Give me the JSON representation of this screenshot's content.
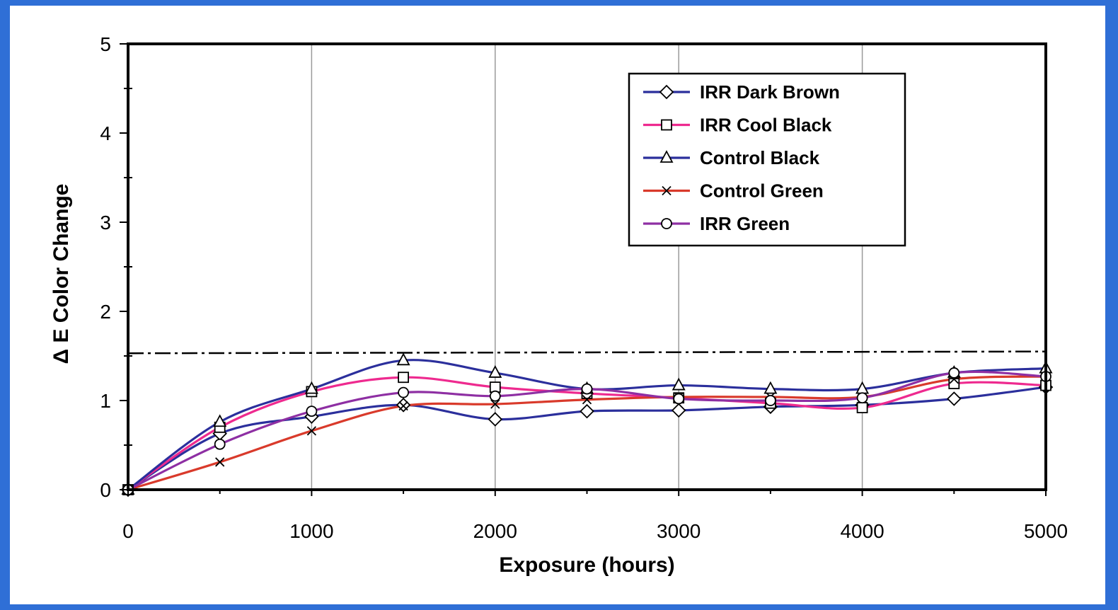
{
  "chart_data": {
    "type": "line",
    "title": "",
    "xlabel": "Exposure (hours)",
    "ylabel": "Δ E Color Change",
    "xlim": [
      0,
      5000
    ],
    "ylim": [
      0,
      5
    ],
    "x_ticks": [
      0,
      1000,
      2000,
      3000,
      4000,
      5000
    ],
    "y_ticks": [
      0,
      1,
      2,
      3,
      4,
      5
    ],
    "grid": "vertical",
    "legend": "top-right",
    "x": [
      0,
      500,
      1000,
      1500,
      2000,
      2500,
      3000,
      3500,
      4000,
      4500,
      5000
    ],
    "series": [
      {
        "name": "IRR Dark Brown",
        "marker": "diamond",
        "color": "#2b2f9c",
        "values": [
          0,
          0.63,
          0.82,
          0.95,
          0.79,
          0.88,
          0.89,
          0.93,
          0.95,
          1.02,
          1.15
        ]
      },
      {
        "name": "IRR Cool Black",
        "marker": "square",
        "color": "#ee2a8f",
        "values": [
          0,
          0.7,
          1.1,
          1.26,
          1.15,
          1.08,
          1.03,
          0.97,
          0.92,
          1.19,
          1.17
        ]
      },
      {
        "name": "Control Black",
        "marker": "triangle",
        "color": "#2b2f9c",
        "values": [
          0,
          0.76,
          1.13,
          1.45,
          1.31,
          1.13,
          1.17,
          1.13,
          1.13,
          1.31,
          1.36
        ]
      },
      {
        "name": "Control Green",
        "marker": "x",
        "color": "#d93a2b",
        "values": [
          0,
          0.31,
          0.66,
          0.94,
          0.96,
          1.01,
          1.04,
          1.04,
          1.04,
          1.24,
          1.27
        ]
      },
      {
        "name": "IRR Green",
        "marker": "circle",
        "color": "#8e2fa3",
        "values": [
          0,
          0.51,
          0.88,
          1.09,
          1.05,
          1.13,
          1.02,
          1.0,
          1.03,
          1.31,
          1.27
        ]
      }
    ],
    "reference_line": {
      "style": "dash-dot",
      "values": [
        1.53,
        1.55
      ]
    }
  }
}
